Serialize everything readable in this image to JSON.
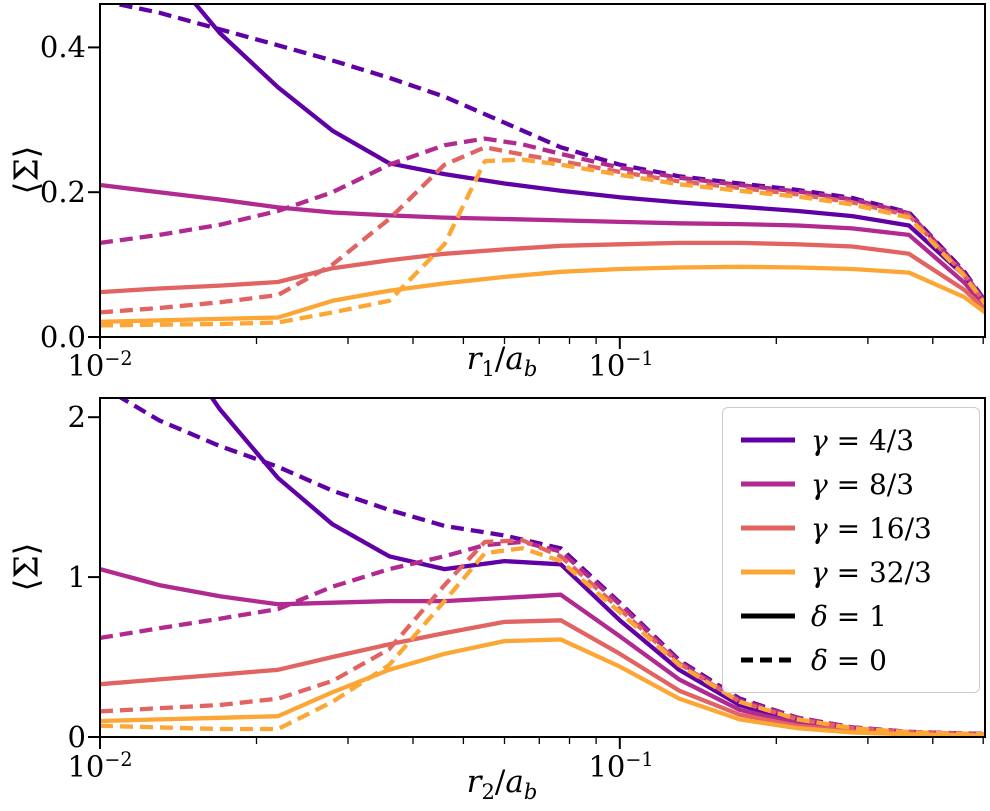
{
  "figure": {
    "background": "#ffffff"
  },
  "colors": {
    "gamma_4_3": "#6001a6",
    "gamma_8_3": "#b12a90",
    "gamma_16_3": "#e16462",
    "gamma_32_3": "#fca636",
    "axis": "#000000",
    "legend_border": "#cccccc"
  },
  "legend": {
    "location": "bottom panel, upper right",
    "entries": [
      {
        "sym": "γ",
        "rest": " = 4/3",
        "color": "#6001a6",
        "style": "solid"
      },
      {
        "sym": "γ",
        "rest": " = 8/3",
        "color": "#b12a90",
        "style": "solid"
      },
      {
        "sym": "γ",
        "rest": " = 16/3",
        "color": "#e16462",
        "style": "solid"
      },
      {
        "sym": "γ",
        "rest": " = 32/3",
        "color": "#fca636",
        "style": "solid"
      },
      {
        "sym": "δ",
        "rest": " = 1",
        "color": "#000000",
        "style": "solid"
      },
      {
        "sym": "δ",
        "rest": " = 0",
        "color": "#000000",
        "style": "dashed"
      }
    ]
  },
  "chart_data": [
    {
      "type": "line",
      "title": "",
      "xlabel": "r_1/a_b",
      "xlabel_parts": {
        "var": "r",
        "sub": "1",
        "sep": "/",
        "var2": "a",
        "sub2": "b"
      },
      "ylabel": "⟨Σ⟩",
      "xscale": "log",
      "xlim": [
        0.01,
        0.504
      ],
      "ylim": [
        0,
        0.46
      ],
      "xticks": [
        0.01,
        0.1
      ],
      "xtick_labels": [
        {
          "base": "10",
          "exp": "−2"
        },
        {
          "base": "10",
          "exp": "−1"
        }
      ],
      "minor_xticks": [
        0.02,
        0.03,
        0.04,
        0.05,
        0.06,
        0.07,
        0.08,
        0.09,
        0.2,
        0.3,
        0.4,
        0.5
      ],
      "yticks": [
        0.0,
        0.2,
        0.4
      ],
      "ytick_labels": [
        "0.0",
        "0.2",
        "0.4"
      ],
      "grid": false,
      "series": [
        {
          "id": "gamma-4-3-delta-1",
          "name": "γ=4/3, δ=1",
          "color": "#6001a6",
          "style": "solid",
          "x": [
            0.01,
            0.013,
            0.017,
            0.022,
            0.028,
            0.036,
            0.046,
            0.06,
            0.077,
            0.1,
            0.13,
            0.17,
            0.22,
            0.28,
            0.36,
            0.46,
            0.504
          ],
          "y": [
            0.72,
            0.52,
            0.42,
            0.345,
            0.285,
            0.24,
            0.225,
            0.212,
            0.202,
            0.193,
            0.186,
            0.18,
            0.174,
            0.167,
            0.154,
            0.085,
            0.045
          ]
        },
        {
          "id": "gamma-4-3-delta-0",
          "name": "γ=4/3, δ=0",
          "color": "#6001a6",
          "style": "dashed",
          "x": [
            0.01,
            0.013,
            0.017,
            0.022,
            0.028,
            0.036,
            0.046,
            0.06,
            0.077,
            0.1,
            0.13,
            0.17,
            0.22,
            0.28,
            0.36,
            0.46,
            0.504
          ],
          "y": [
            0.465,
            0.448,
            0.425,
            0.403,
            0.382,
            0.358,
            0.332,
            0.296,
            0.262,
            0.238,
            0.222,
            0.212,
            0.203,
            0.192,
            0.172,
            0.09,
            0.05
          ]
        },
        {
          "id": "gamma-8-3-delta-1",
          "name": "γ=8/3, δ=1",
          "color": "#b12a90",
          "style": "solid",
          "x": [
            0.01,
            0.013,
            0.017,
            0.022,
            0.028,
            0.036,
            0.046,
            0.06,
            0.077,
            0.1,
            0.13,
            0.17,
            0.22,
            0.28,
            0.36,
            0.46,
            0.504
          ],
          "y": [
            0.21,
            0.2,
            0.19,
            0.179,
            0.172,
            0.168,
            0.165,
            0.163,
            0.161,
            0.159,
            0.157,
            0.156,
            0.154,
            0.15,
            0.141,
            0.075,
            0.042
          ]
        },
        {
          "id": "gamma-8-3-delta-0",
          "name": "γ=8/3, δ=0",
          "color": "#b12a90",
          "style": "dashed",
          "x": [
            0.01,
            0.013,
            0.017,
            0.022,
            0.028,
            0.036,
            0.046,
            0.055,
            0.065,
            0.077,
            0.1,
            0.13,
            0.17,
            0.22,
            0.28,
            0.36,
            0.46,
            0.504
          ],
          "y": [
            0.13,
            0.141,
            0.155,
            0.174,
            0.2,
            0.238,
            0.265,
            0.274,
            0.266,
            0.253,
            0.234,
            0.22,
            0.21,
            0.201,
            0.19,
            0.171,
            0.088,
            0.048
          ]
        },
        {
          "id": "gamma-16-3-delta-1",
          "name": "γ=16/3, δ=1",
          "color": "#e16462",
          "style": "solid",
          "x": [
            0.01,
            0.013,
            0.017,
            0.022,
            0.028,
            0.036,
            0.046,
            0.06,
            0.077,
            0.1,
            0.13,
            0.17,
            0.22,
            0.28,
            0.36,
            0.46,
            0.504
          ],
          "y": [
            0.062,
            0.067,
            0.071,
            0.076,
            0.095,
            0.106,
            0.115,
            0.121,
            0.126,
            0.128,
            0.13,
            0.13,
            0.128,
            0.125,
            0.115,
            0.065,
            0.038
          ]
        },
        {
          "id": "gamma-16-3-delta-0",
          "name": "γ=16/3, δ=0",
          "color": "#e16462",
          "style": "dashed",
          "x": [
            0.01,
            0.013,
            0.017,
            0.022,
            0.028,
            0.036,
            0.046,
            0.055,
            0.065,
            0.077,
            0.1,
            0.13,
            0.17,
            0.22,
            0.28,
            0.36,
            0.46,
            0.504
          ],
          "y": [
            0.034,
            0.04,
            0.048,
            0.058,
            0.1,
            0.163,
            0.238,
            0.262,
            0.252,
            0.243,
            0.228,
            0.215,
            0.206,
            0.197,
            0.186,
            0.168,
            0.086,
            0.047
          ]
        },
        {
          "id": "gamma-32-3-delta-1",
          "name": "γ=32/3, δ=1",
          "color": "#fca636",
          "style": "solid",
          "x": [
            0.01,
            0.013,
            0.017,
            0.022,
            0.028,
            0.036,
            0.046,
            0.06,
            0.077,
            0.1,
            0.13,
            0.17,
            0.22,
            0.28,
            0.36,
            0.46,
            0.504
          ],
          "y": [
            0.021,
            0.023,
            0.025,
            0.027,
            0.05,
            0.064,
            0.074,
            0.083,
            0.09,
            0.094,
            0.096,
            0.097,
            0.096,
            0.094,
            0.089,
            0.055,
            0.034
          ]
        },
        {
          "id": "gamma-32-3-delta-0",
          "name": "γ=32/3, δ=0",
          "color": "#fca636",
          "style": "dashed",
          "x": [
            0.01,
            0.013,
            0.017,
            0.022,
            0.028,
            0.036,
            0.046,
            0.055,
            0.065,
            0.077,
            0.1,
            0.13,
            0.17,
            0.22,
            0.28,
            0.36,
            0.46,
            0.504
          ],
          "y": [
            0.016,
            0.017,
            0.018,
            0.02,
            0.034,
            0.05,
            0.128,
            0.243,
            0.245,
            0.238,
            0.224,
            0.211,
            0.202,
            0.194,
            0.183,
            0.165,
            0.084,
            0.046
          ]
        }
      ]
    },
    {
      "type": "line",
      "title": "",
      "xlabel": "r_2/a_b",
      "xlabel_parts": {
        "var": "r",
        "sub": "2",
        "sep": "/",
        "var2": "a",
        "sub2": "b"
      },
      "ylabel": "⟨Σ⟩",
      "xscale": "log",
      "xlim": [
        0.01,
        0.504
      ],
      "ylim": [
        0,
        2.12
      ],
      "xticks": [
        0.01,
        0.1
      ],
      "xtick_labels": [
        {
          "base": "10",
          "exp": "−2"
        },
        {
          "base": "10",
          "exp": "−1"
        }
      ],
      "minor_xticks": [
        0.02,
        0.03,
        0.04,
        0.05,
        0.06,
        0.07,
        0.08,
        0.09,
        0.2,
        0.3,
        0.4,
        0.5
      ],
      "yticks": [
        0,
        1,
        2
      ],
      "ytick_labels": [
        "0",
        "1",
        "2"
      ],
      "grid": false,
      "series": [
        {
          "id": "gamma-4-3-delta-1",
          "name": "γ=4/3, δ=1",
          "color": "#6001a6",
          "style": "solid",
          "x": [
            0.01,
            0.013,
            0.017,
            0.022,
            0.028,
            0.036,
            0.046,
            0.06,
            0.077,
            0.1,
            0.13,
            0.17,
            0.22,
            0.28,
            0.36,
            0.46,
            0.504
          ],
          "y": [
            3.4,
            2.6,
            2.05,
            1.62,
            1.33,
            1.13,
            1.05,
            1.1,
            1.08,
            0.73,
            0.42,
            0.2,
            0.1,
            0.05,
            0.028,
            0.018,
            0.016
          ]
        },
        {
          "id": "gamma-4-3-delta-0",
          "name": "γ=4/3, δ=0",
          "color": "#6001a6",
          "style": "dashed",
          "x": [
            0.01,
            0.013,
            0.017,
            0.022,
            0.028,
            0.036,
            0.046,
            0.06,
            0.077,
            0.1,
            0.13,
            0.17,
            0.22,
            0.28,
            0.36,
            0.46,
            0.504
          ],
          "y": [
            2.2,
            1.98,
            1.82,
            1.69,
            1.54,
            1.42,
            1.32,
            1.26,
            1.18,
            0.84,
            0.48,
            0.24,
            0.12,
            0.06,
            0.032,
            0.022,
            0.02
          ]
        },
        {
          "id": "gamma-8-3-delta-1",
          "name": "γ=8/3, δ=1",
          "color": "#b12a90",
          "style": "solid",
          "x": [
            0.01,
            0.013,
            0.017,
            0.022,
            0.028,
            0.036,
            0.046,
            0.06,
            0.077,
            0.1,
            0.13,
            0.17,
            0.22,
            0.28,
            0.36,
            0.46,
            0.504
          ],
          "y": [
            1.05,
            0.95,
            0.88,
            0.83,
            0.84,
            0.85,
            0.85,
            0.87,
            0.89,
            0.63,
            0.36,
            0.17,
            0.085,
            0.042,
            0.024,
            0.015,
            0.013
          ]
        },
        {
          "id": "gamma-8-3-delta-0",
          "name": "γ=8/3, δ=0",
          "color": "#b12a90",
          "style": "dashed",
          "x": [
            0.01,
            0.013,
            0.017,
            0.022,
            0.028,
            0.036,
            0.046,
            0.055,
            0.065,
            0.077,
            0.1,
            0.13,
            0.17,
            0.22,
            0.28,
            0.36,
            0.46,
            0.504
          ],
          "y": [
            0.62,
            0.68,
            0.74,
            0.8,
            0.94,
            1.05,
            1.13,
            1.2,
            1.22,
            1.16,
            0.83,
            0.47,
            0.23,
            0.12,
            0.06,
            0.032,
            0.022,
            0.02
          ]
        },
        {
          "id": "gamma-16-3-delta-1",
          "name": "γ=16/3, δ=1",
          "color": "#e16462",
          "style": "solid",
          "x": [
            0.01,
            0.013,
            0.017,
            0.022,
            0.028,
            0.036,
            0.046,
            0.06,
            0.077,
            0.1,
            0.13,
            0.17,
            0.22,
            0.28,
            0.36,
            0.46,
            0.504
          ],
          "y": [
            0.33,
            0.36,
            0.39,
            0.42,
            0.5,
            0.58,
            0.65,
            0.72,
            0.73,
            0.52,
            0.29,
            0.14,
            0.07,
            0.035,
            0.02,
            0.012,
            0.01
          ]
        },
        {
          "id": "gamma-16-3-delta-0",
          "name": "γ=16/3, δ=0",
          "color": "#e16462",
          "style": "dashed",
          "x": [
            0.01,
            0.013,
            0.017,
            0.022,
            0.028,
            0.036,
            0.046,
            0.055,
            0.065,
            0.077,
            0.1,
            0.13,
            0.17,
            0.22,
            0.28,
            0.36,
            0.46,
            0.504
          ],
          "y": [
            0.16,
            0.18,
            0.2,
            0.24,
            0.35,
            0.55,
            0.95,
            1.22,
            1.23,
            1.13,
            0.8,
            0.46,
            0.22,
            0.11,
            0.055,
            0.03,
            0.02,
            0.018
          ]
        },
        {
          "id": "gamma-32-3-delta-1",
          "name": "γ=32/3, δ=1",
          "color": "#fca636",
          "style": "solid",
          "x": [
            0.01,
            0.013,
            0.017,
            0.022,
            0.028,
            0.036,
            0.046,
            0.06,
            0.077,
            0.1,
            0.13,
            0.17,
            0.22,
            0.28,
            0.36,
            0.46,
            0.504
          ],
          "y": [
            0.1,
            0.11,
            0.12,
            0.13,
            0.28,
            0.42,
            0.52,
            0.6,
            0.61,
            0.44,
            0.24,
            0.11,
            0.055,
            0.028,
            0.016,
            0.01,
            0.009
          ]
        },
        {
          "id": "gamma-32-3-delta-0",
          "name": "γ=32/3, δ=0",
          "color": "#fca636",
          "style": "dashed",
          "x": [
            0.01,
            0.013,
            0.017,
            0.022,
            0.028,
            0.036,
            0.046,
            0.055,
            0.065,
            0.077,
            0.1,
            0.13,
            0.17,
            0.22,
            0.28,
            0.36,
            0.46,
            0.504
          ],
          "y": [
            0.07,
            0.06,
            0.05,
            0.05,
            0.22,
            0.45,
            0.85,
            1.15,
            1.18,
            1.1,
            0.78,
            0.45,
            0.22,
            0.11,
            0.055,
            0.03,
            0.02,
            0.018
          ]
        }
      ]
    }
  ]
}
